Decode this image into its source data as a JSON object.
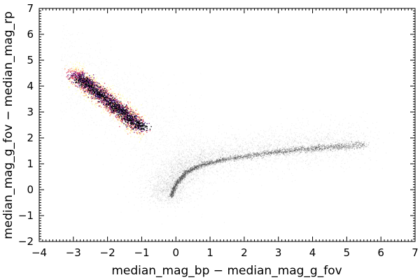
{
  "chart_data": {
    "type": "scatter",
    "title": "",
    "xlabel": "median_mag_bp − median_mag_g_fov",
    "ylabel": "median_mag_g_fov − median_mag_rp",
    "xlim": [
      -4,
      7
    ],
    "ylim": [
      -2,
      7
    ],
    "x_ticks": [
      -4,
      -3,
      -2,
      -1,
      0,
      1,
      2,
      3,
      4,
      5,
      6,
      7
    ],
    "y_ticks": [
      -2,
      -1,
      0,
      1,
      2,
      3,
      4,
      5,
      6,
      7
    ],
    "x_tick_labels": [
      "−4",
      "−3",
      "−2",
      "−1",
      "0",
      "1",
      "2",
      "3",
      "4",
      "5",
      "6",
      "7"
    ],
    "y_tick_labels": [
      "−2",
      "−1",
      "0",
      "1",
      "2",
      "3",
      "4",
      "5",
      "6",
      "7"
    ],
    "grid": false,
    "series": [
      {
        "style": "grey density",
        "color": "#444444",
        "main_locus": [
          {
            "x": -0.15,
            "y": -0.25
          },
          {
            "x": 0.0,
            "y": 0.25
          },
          {
            "x": 0.3,
            "y": 0.7
          },
          {
            "x": 0.8,
            "y": 1.0
          },
          {
            "x": 1.5,
            "y": 1.2
          },
          {
            "x": 2.5,
            "y": 1.4
          },
          {
            "x": 3.5,
            "y": 1.55
          },
          {
            "x": 4.5,
            "y": 1.65
          },
          {
            "x": 5.5,
            "y": 1.75
          }
        ],
        "diffuse_cloud_extent": {
          "x": [
            -3.5,
            5.5
          ],
          "y": [
            -0.5,
            5.0
          ]
        }
      },
      {
        "style": "inferno density (high-density cluster)",
        "colors": [
          "#000004",
          "#3b0f70",
          "#8c2981",
          "#de4968",
          "#fe9f6d",
          "#fcfdbf"
        ],
        "centerline": [
          {
            "x": -3.0,
            "y": 4.5
          },
          {
            "x": -2.0,
            "y": 3.4
          },
          {
            "x": -1.0,
            "y": 2.4
          }
        ],
        "extent": {
          "x": [
            -3.3,
            -0.5
          ],
          "y": [
            2.2,
            4.8
          ]
        }
      }
    ]
  }
}
